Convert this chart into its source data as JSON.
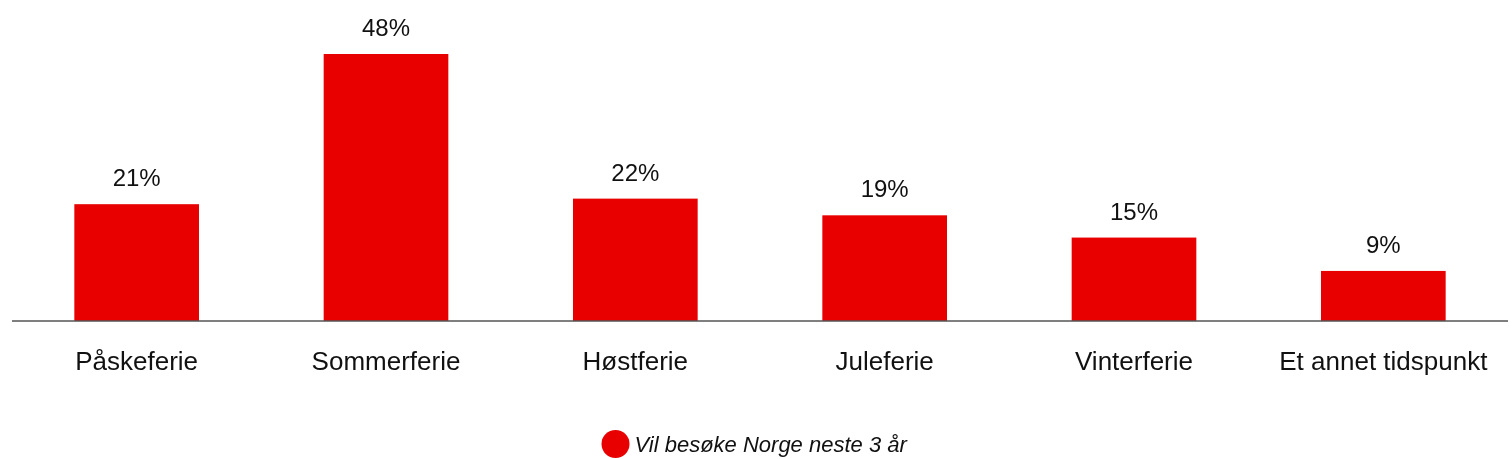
{
  "chart_data": {
    "type": "bar",
    "categories": [
      "Påskeferie",
      "Sommerferie",
      "Høstferie",
      "Juleferie",
      "Vinterferie",
      "Et annet tidspunkt"
    ],
    "series": [
      {
        "name": "Vil besøke Norge neste 3 år",
        "color": "#e80000",
        "values": [
          21,
          48,
          22,
          19,
          15,
          9
        ],
        "value_labels": [
          "21%",
          "48%",
          "22%",
          "19%",
          "15%",
          "9%"
        ]
      }
    ],
    "legend": "bottom"
  }
}
